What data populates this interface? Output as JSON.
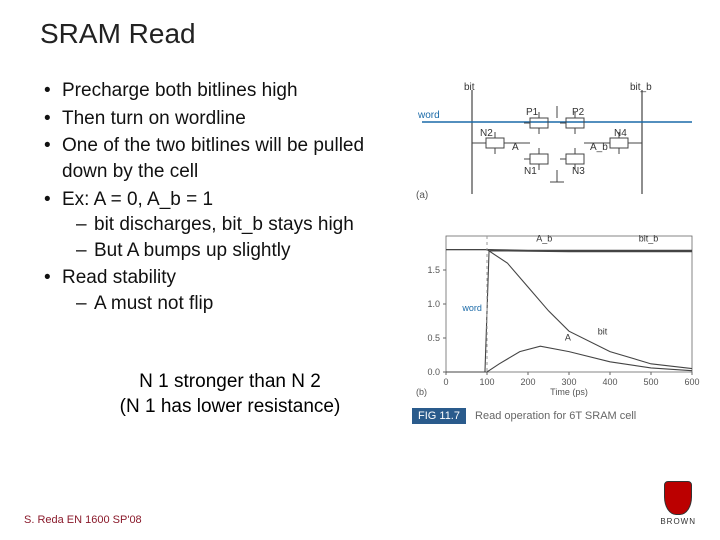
{
  "title": "SRAM Read",
  "bullets": {
    "b1": "Precharge both bitlines high",
    "b2": "Then turn on wordline",
    "b3": "One of the two bitlines will be pulled down by the cell",
    "b4": "Ex: A = 0, A_b = 1",
    "b4s1": "bit discharges, bit_b stays high",
    "b4s2": "But A bumps up slightly",
    "b5": "Read stability",
    "b5s1": "A must not flip"
  },
  "note": {
    "line1": "N 1 stronger than N 2",
    "line2": "(N 1 has lower resistance)"
  },
  "circuit": {
    "word_label": "word",
    "bit_label": "bit",
    "bitb_label": "bit_b",
    "transistors": {
      "N1": "N1",
      "N2": "N2",
      "N3": "N3",
      "N4": "N4",
      "P1": "P1",
      "P2": "P2"
    },
    "nodes": {
      "A": "A",
      "A_b": "A_b"
    },
    "sub_label": "(a)",
    "line_color": "#444444",
    "word_color": "#1a6aa8"
  },
  "chart": {
    "type": "line",
    "xlabel": "Time (ps)",
    "xlim": [
      0,
      600
    ],
    "xtick_step": 100,
    "ylim": [
      0,
      2.0
    ],
    "yticks": [
      0.0,
      0.5,
      1.0,
      1.5
    ],
    "background_color": "#ffffff",
    "grid_color": "#999999",
    "axis_color": "#666666",
    "label_fontsize": 9,
    "sub_label": "(b)",
    "series": {
      "A_b": {
        "label": "A_b",
        "color": "#444444",
        "points": [
          [
            0,
            1.8
          ],
          [
            100,
            1.8
          ],
          [
            150,
            1.78
          ],
          [
            300,
            1.77
          ],
          [
            600,
            1.77
          ]
        ]
      },
      "bit_b": {
        "label": "bit_b",
        "color": "#444444",
        "points": [
          [
            0,
            1.8
          ],
          [
            100,
            1.8
          ],
          [
            200,
            1.79
          ],
          [
            600,
            1.79
          ]
        ]
      },
      "bit": {
        "label": "bit",
        "color": "#444444",
        "points": [
          [
            0,
            1.8
          ],
          [
            100,
            1.8
          ],
          [
            150,
            1.6
          ],
          [
            200,
            1.25
          ],
          [
            250,
            0.9
          ],
          [
            300,
            0.6
          ],
          [
            400,
            0.3
          ],
          [
            500,
            0.12
          ],
          [
            600,
            0.05
          ]
        ]
      },
      "word": {
        "label": "word",
        "label_color": "#1a6aa8",
        "color": "#444444",
        "points": [
          [
            0,
            0
          ],
          [
            95,
            0
          ],
          [
            105,
            1.78
          ],
          [
            600,
            1.78
          ]
        ]
      },
      "A": {
        "label": "A",
        "color": "#444444",
        "points": [
          [
            0,
            0
          ],
          [
            100,
            0
          ],
          [
            130,
            0.12
          ],
          [
            180,
            0.3
          ],
          [
            230,
            0.38
          ],
          [
            300,
            0.3
          ],
          [
            400,
            0.15
          ],
          [
            500,
            0.06
          ],
          [
            600,
            0.02
          ]
        ]
      }
    }
  },
  "figcaption": {
    "tag": "FIG 11.7",
    "text": "Read operation for 6T SRAM cell"
  },
  "footer": "S. Reda EN 1600 SP'08",
  "logo_text": "BROWN"
}
